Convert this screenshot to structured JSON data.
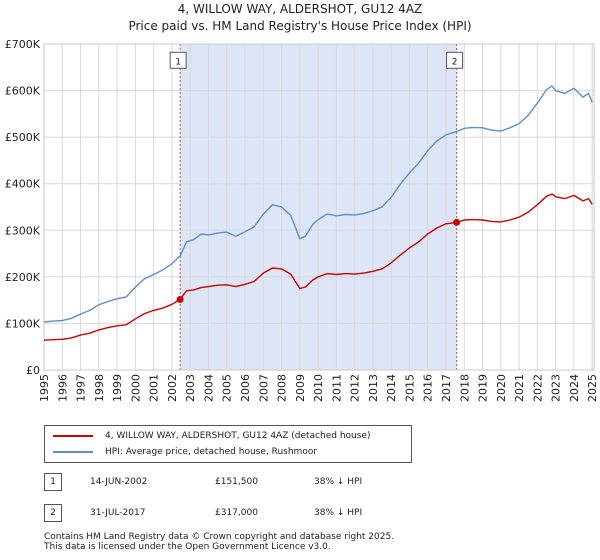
{
  "header": {
    "title": "4, WILLOW WAY, ALDERSHOT, GU12 4AZ",
    "subtitle": "Price paid vs. HM Land Registry's House Price Index (HPI)"
  },
  "colors": {
    "property": "#cc0000",
    "hpi": "#5b8fd0",
    "shade": "#dce6f7",
    "vline": "#dd4444",
    "grid": "#d8d8d8"
  },
  "chart_data": {
    "type": "line",
    "title": "Price paid vs. HM Land Registry's House Price Index (HPI)",
    "xlabel": "",
    "ylabel": "",
    "xlim": [
      1995,
      2025.1
    ],
    "ylim": [
      0,
      700000
    ],
    "yticks": [
      0,
      100000,
      200000,
      300000,
      400000,
      500000,
      600000,
      700000
    ],
    "ytick_labels": [
      "£0",
      "£100K",
      "£200K",
      "£300K",
      "£400K",
      "£500K",
      "£600K",
      "£700K"
    ],
    "xticks": [
      1995,
      1996,
      1997,
      1998,
      1999,
      2000,
      2001,
      2002,
      2003,
      2004,
      2005,
      2006,
      2007,
      2008,
      2009,
      2010,
      2011,
      2012,
      2013,
      2014,
      2015,
      2016,
      2017,
      2018,
      2019,
      2020,
      2021,
      2022,
      2023,
      2024,
      2025
    ],
    "shaded_span": [
      2002.45,
      2017.58
    ],
    "series": [
      {
        "name": "4, WILLOW WAY, ALDERSHOT, GU12 4AZ (detached house)",
        "color": "#cc0000",
        "x": [
          1995.0,
          1995.5,
          1996.0,
          1996.5,
          1997.0,
          1997.5,
          1998.0,
          1998.5,
          1999.0,
          1999.5,
          2000.0,
          2000.5,
          2001.0,
          2001.5,
          2002.0,
          2002.45,
          2002.8,
          2003.2,
          2003.6,
          2004.0,
          2004.5,
          2005.0,
          2005.5,
          2006.0,
          2006.5,
          2007.0,
          2007.5,
          2008.0,
          2008.5,
          2009.0,
          2009.3,
          2009.7,
          2010.0,
          2010.5,
          2011.0,
          2011.5,
          2012.0,
          2012.5,
          2013.0,
          2013.5,
          2014.0,
          2014.5,
          2015.0,
          2015.5,
          2016.0,
          2016.5,
          2017.0,
          2017.58,
          2018.0,
          2018.5,
          2019.0,
          2019.5,
          2020.0,
          2020.5,
          2021.0,
          2021.5,
          2022.0,
          2022.5,
          2022.8,
          2023.0,
          2023.5,
          2024.0,
          2024.5,
          2024.8,
          2025.0
        ],
        "y": [
          64000,
          65000,
          66000,
          69000,
          75000,
          79000,
          86000,
          91000,
          95000,
          97000,
          110000,
          121000,
          128000,
          133000,
          141000,
          151500,
          170000,
          172000,
          177000,
          179000,
          182000,
          183000,
          179000,
          184000,
          190000,
          208000,
          219000,
          217000,
          206000,
          175000,
          178000,
          193000,
          200000,
          207000,
          205000,
          207000,
          206000,
          208000,
          212000,
          217000,
          230000,
          247000,
          262000,
          275000,
          292000,
          305000,
          314000,
          317000,
          322000,
          323000,
          322000,
          319000,
          318000,
          322000,
          328000,
          339000,
          355000,
          373000,
          378000,
          372000,
          368000,
          375000,
          363000,
          368000,
          356000
        ]
      },
      {
        "name": "HPI: Average price, detached house, Rushmoor",
        "color": "#5b8fd0",
        "x": [
          1995.0,
          1995.5,
          1996.0,
          1996.5,
          1997.0,
          1997.5,
          1998.0,
          1998.5,
          1999.0,
          1999.5,
          2000.0,
          2000.5,
          2001.0,
          2001.5,
          2002.0,
          2002.45,
          2002.8,
          2003.2,
          2003.6,
          2004.0,
          2004.5,
          2005.0,
          2005.5,
          2006.0,
          2006.5,
          2007.0,
          2007.5,
          2008.0,
          2008.5,
          2009.0,
          2009.3,
          2009.7,
          2010.0,
          2010.5,
          2011.0,
          2011.5,
          2012.0,
          2012.5,
          2013.0,
          2013.5,
          2014.0,
          2014.5,
          2015.0,
          2015.5,
          2016.0,
          2016.5,
          2017.0,
          2017.58,
          2018.0,
          2018.5,
          2019.0,
          2019.5,
          2020.0,
          2020.5,
          2021.0,
          2021.5,
          2022.0,
          2022.5,
          2022.8,
          2023.0,
          2023.5,
          2024.0,
          2024.5,
          2024.8,
          2025.0
        ],
        "y": [
          103000,
          105000,
          106000,
          111000,
          120000,
          128000,
          140000,
          147000,
          153000,
          157000,
          178000,
          196000,
          205000,
          215000,
          228000,
          245000,
          275000,
          280000,
          292000,
          290000,
          294000,
          296000,
          287000,
          297000,
          307000,
          335000,
          355000,
          350000,
          332000,
          282000,
          287000,
          312000,
          323000,
          335000,
          331000,
          334000,
          333000,
          336000,
          342000,
          350000,
          371000,
          399000,
          423000,
          444000,
          471000,
          492000,
          505000,
          512000,
          519000,
          521000,
          520000,
          515000,
          513000,
          520000,
          529000,
          547000,
          573000,
          602000,
          610000,
          600000,
          594000,
          605000,
          586000,
          594000,
          575000
        ]
      }
    ],
    "markers": [
      {
        "label": "1",
        "x": 2002.45,
        "y": 151500,
        "label_y": 665000
      },
      {
        "label": "2",
        "x": 2017.58,
        "y": 317000,
        "label_y": 665000
      }
    ]
  },
  "legend": {
    "items": [
      {
        "label": "4, WILLOW WAY, ALDERSHOT, GU12 4AZ (detached house)"
      },
      {
        "label": "HPI: Average price, detached house, Rushmoor"
      }
    ]
  },
  "transactions": [
    {
      "num": "1",
      "date": "14-JUN-2002",
      "price": "£151,500",
      "hpi": "38% ↓ HPI"
    },
    {
      "num": "2",
      "date": "31-JUL-2017",
      "price": "£317,000",
      "hpi": "38% ↓ HPI"
    }
  ],
  "footer": {
    "line1": "Contains HM Land Registry data © Crown copyright and database right 2025.",
    "line2": "This data is licensed under the Open Government Licence v3.0."
  }
}
